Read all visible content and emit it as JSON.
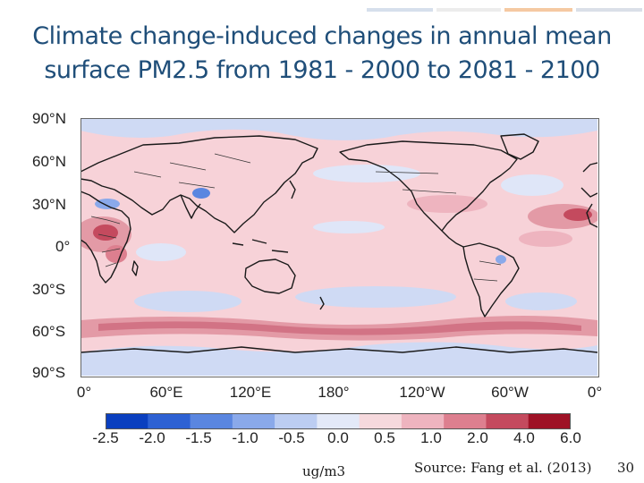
{
  "slide": {
    "title_line1": "Climate change-induced changes in annual mean",
    "title_line2": "surface PM2.5 from 1981 - 2000 to 2081 - 2100",
    "accent_colors": [
      "#d6dfec",
      "#ececec",
      "#f5c9a2",
      "#dadfe8"
    ],
    "page_number": "30"
  },
  "map": {
    "lat_labels": [
      "90°N",
      "60°N",
      "30°N",
      "0°",
      "30°S",
      "60°S",
      "90°S"
    ],
    "lon_labels": [
      "0°",
      "60°E",
      "120°E",
      "180°",
      "120°W",
      "60°W",
      "0°"
    ],
    "base_color": "#f7d2d8",
    "land_outline_color": "#1a1a1a"
  },
  "colorbar": {
    "tick_labels": [
      "-2.5",
      "-2.0",
      "-1.5",
      "-1.0",
      "-0.5",
      "0.0",
      "0.5",
      "1.0",
      "2.0",
      "4.0",
      "6.0"
    ],
    "colors": [
      "#0a3fbf",
      "#2d61d3",
      "#5a86e0",
      "#8aa9ea",
      "#bccdf2",
      "#e3e9f8",
      "#f6d9dd",
      "#eeb4bf",
      "#dd7f8f",
      "#c44a5e",
      "#9e1226"
    ]
  },
  "footer": {
    "unit": "ug/m3",
    "source": "Source: Fang et al. (2013)"
  }
}
